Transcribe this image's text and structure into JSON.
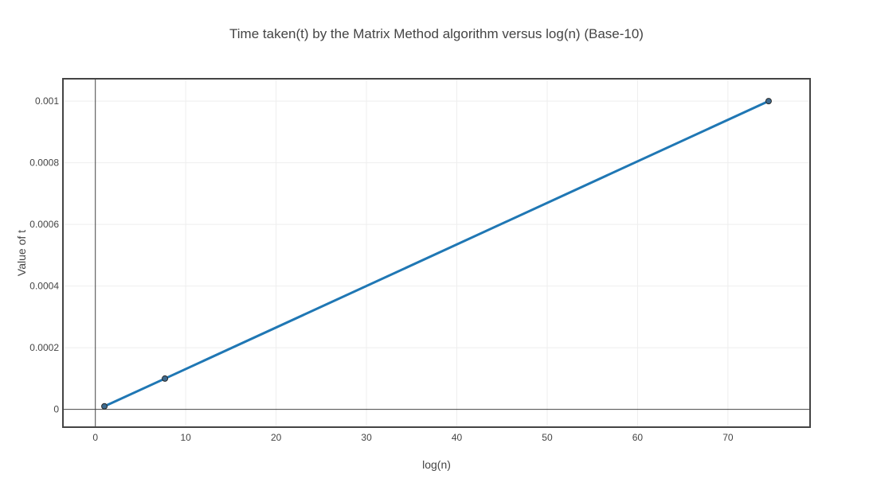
{
  "chart_data": {
    "type": "line",
    "title": "Time taken(t) by the Matrix Method algorithm versus log(n) (Base-10)",
    "xlabel": "log(n)",
    "ylabel": "Value of t",
    "xlim": [
      -3.5,
      79
    ],
    "ylim": [
      -5.5e-05,
      0.00107
    ],
    "x_ticks": [
      0,
      10,
      20,
      30,
      40,
      50,
      60,
      70
    ],
    "y_ticks": [
      0,
      0.0002,
      0.0004,
      0.0006,
      0.0008,
      0.001
    ],
    "y_tick_labels": [
      "0",
      "0.0002",
      "0.0004",
      "0.0006",
      "0.0008",
      "0.001"
    ],
    "grid": true,
    "series": [
      {
        "color": "#1f77b4",
        "marker_color": "#3d6a8f",
        "x": [
          1,
          7.7,
          74.5
        ],
        "y": [
          1e-05,
          0.0001,
          0.001
        ]
      }
    ]
  }
}
